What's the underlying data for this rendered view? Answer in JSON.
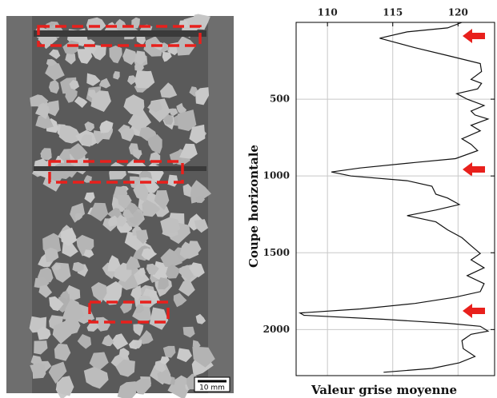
{
  "image": {
    "scale_label": "10 mm"
  },
  "chart_data": {
    "type": "line",
    "x_label": "Valeur grise moyenne",
    "y_label": "Coupe horizontale",
    "x": [
      0,
      36,
      62,
      103,
      165,
      216,
      268,
      320,
      371,
      397,
      433,
      464,
      500,
      541,
      577,
      603,
      629,
      670,
      706,
      758,
      794,
      835,
      887,
      912,
      948,
      974,
      1000,
      1031,
      1067,
      1119,
      1144,
      1186,
      1222,
      1258,
      1299,
      1351,
      1402,
      1454,
      1505,
      1546,
      1598,
      1649,
      1701,
      1753,
      1789,
      1830,
      1866,
      1892,
      1907,
      1933,
      1959,
      1979,
      2010,
      2031,
      2072,
      2124,
      2175,
      2216,
      2253,
      2278
    ],
    "values": [
      120.3,
      119.2,
      116.1,
      114.0,
      116.7,
      119.2,
      121.7,
      121.8,
      121.0,
      121.8,
      121.5,
      119.9,
      120.7,
      122.0,
      121.0,
      121.3,
      122.3,
      121.0,
      121.7,
      120.3,
      121.0,
      121.5,
      119.8,
      116.7,
      112.5,
      110.3,
      111.8,
      116.1,
      118.0,
      118.3,
      119.2,
      120.1,
      118.3,
      116.1,
      118.3,
      119.2,
      120.3,
      121.0,
      121.7,
      121.0,
      122.0,
      120.7,
      122.0,
      121.7,
      119.8,
      116.7,
      112.5,
      107.9,
      108.2,
      114.3,
      119.2,
      121.7,
      122.3,
      121.0,
      120.3,
      120.4,
      121.3,
      120.1,
      118.0,
      114.3
    ],
    "color": "#111111",
    "xlim": [
      107.6,
      122.8
    ],
    "xticks": [
      110,
      115,
      120
    ],
    "ylim": [
      0,
      2300
    ],
    "yticks": [
      500,
      1000,
      1500,
      2000
    ],
    "grid": true
  }
}
